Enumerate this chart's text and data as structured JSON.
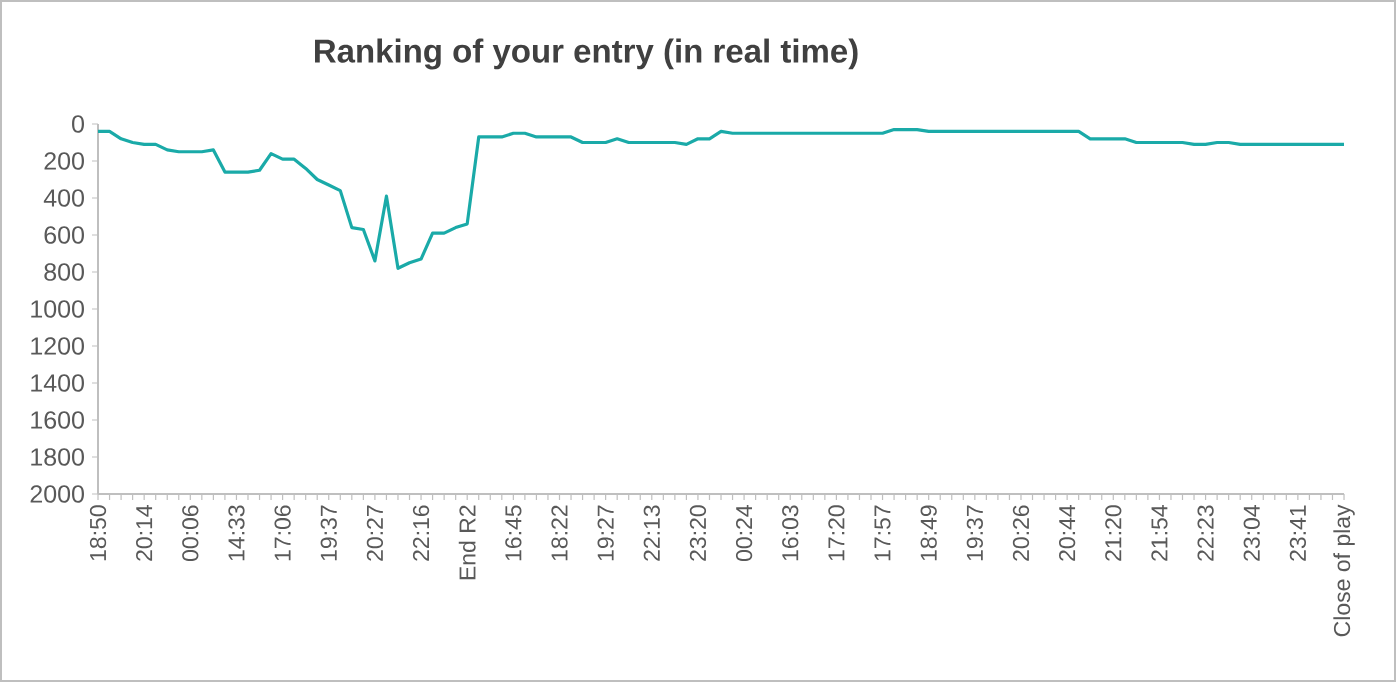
{
  "chart_data": {
    "type": "line",
    "title": "Ranking of your entry (in real time)",
    "categories": [
      "18:50",
      null,
      null,
      null,
      "20:14",
      null,
      null,
      null,
      "00:06",
      null,
      null,
      null,
      "14:33",
      null,
      null,
      null,
      "17:06",
      null,
      null,
      null,
      "19:37",
      null,
      null,
      null,
      "20:27",
      null,
      null,
      null,
      "22:16",
      null,
      null,
      null,
      "End R2",
      null,
      null,
      null,
      "16:45",
      null,
      null,
      null,
      "18:22",
      null,
      null,
      null,
      "19:27",
      null,
      null,
      null,
      "22:13",
      null,
      null,
      null,
      "23:20",
      null,
      null,
      null,
      "00:24",
      null,
      null,
      null,
      "16:03",
      null,
      null,
      null,
      "17:20",
      null,
      null,
      null,
      "17:57",
      null,
      null,
      null,
      "18:49",
      null,
      null,
      null,
      "19:37",
      null,
      null,
      null,
      "20:26",
      null,
      null,
      null,
      "20:44",
      null,
      null,
      null,
      "21:20",
      null,
      null,
      null,
      "21:54",
      null,
      null,
      null,
      "22:23",
      null,
      null,
      null,
      "23:04",
      null,
      null,
      null,
      "23:41",
      null,
      null,
      null,
      "Close of play"
    ],
    "series": [
      {
        "color": "#1aaaa8",
        "values": [
          40,
          40,
          80,
          100,
          110,
          110,
          140,
          150,
          150,
          150,
          140,
          260,
          260,
          260,
          250,
          160,
          190,
          190,
          240,
          300,
          330,
          360,
          560,
          570,
          740,
          390,
          780,
          750,
          730,
          590,
          590,
          560,
          540,
          70,
          70,
          70,
          50,
          50,
          70,
          70,
          70,
          70,
          100,
          100,
          100,
          80,
          100,
          100,
          100,
          100,
          100,
          110,
          80,
          80,
          40,
          50,
          50,
          50,
          50,
          50,
          50,
          50,
          50,
          50,
          50,
          50,
          50,
          50,
          50,
          30,
          30,
          30,
          40,
          40,
          40,
          40,
          40,
          40,
          40,
          40,
          40,
          40,
          40,
          40,
          40,
          40,
          80,
          80,
          80,
          80,
          100,
          100,
          100,
          100,
          100,
          110,
          110,
          100,
          100,
          110,
          110,
          110,
          110,
          110,
          110,
          110,
          110,
          110,
          110
        ]
      }
    ],
    "ylim": [
      2000,
      0
    ],
    "yticks": [
      0,
      200,
      400,
      600,
      800,
      1000,
      1200,
      1400,
      1600,
      1800,
      2000
    ],
    "grid": false,
    "marker": "none",
    "line_style": "solid"
  }
}
